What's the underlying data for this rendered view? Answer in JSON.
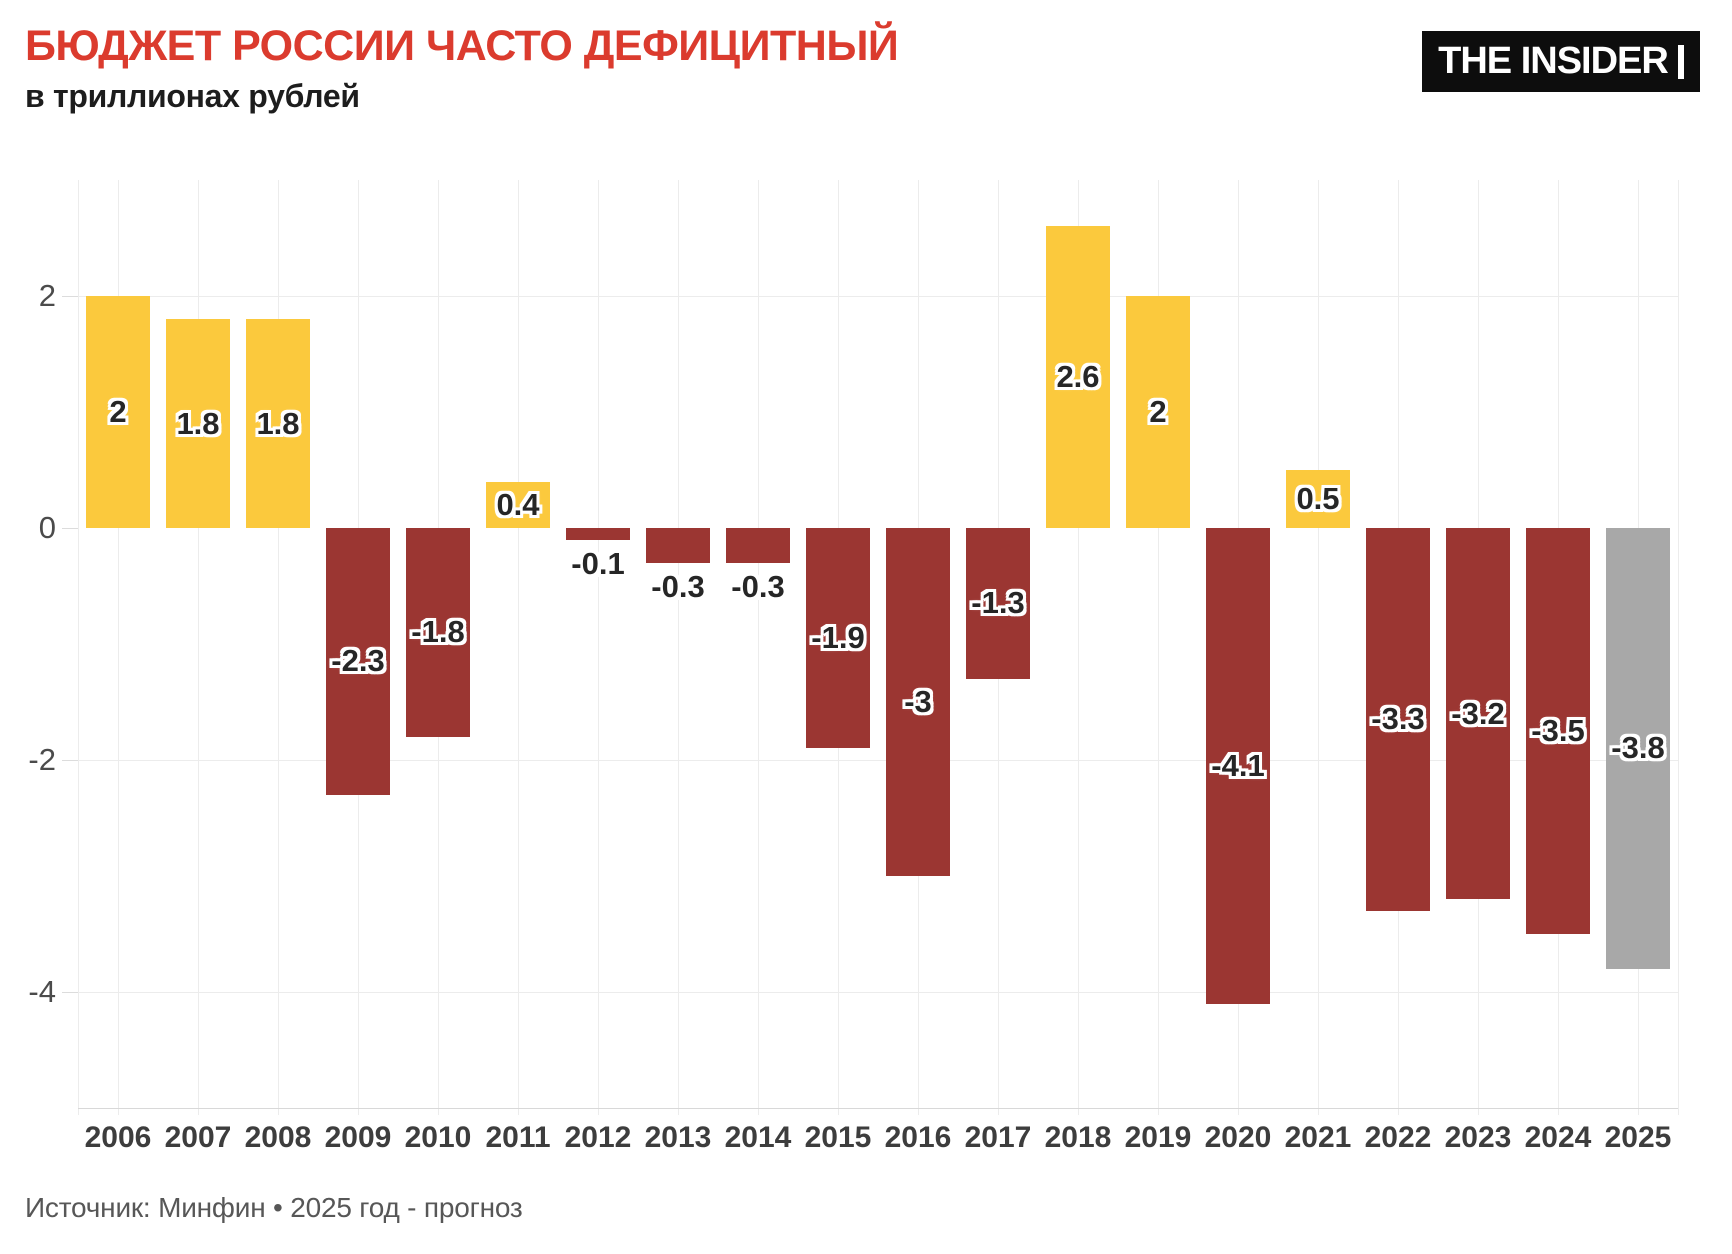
{
  "header": {
    "title": "БЮДЖЕТ РОССИИ ЧАСТО ДЕФИЦИТНЫЙ",
    "subtitle": "в триллионах рублей",
    "logo_text": "THE INSIDER"
  },
  "footer": {
    "source": "Источник: Минфин • 2025 год - прогноз"
  },
  "colors": {
    "title": "#DB3B2E",
    "surplus": "#FBC93D",
    "deficit": "#9B3632",
    "forecast": "#A8A8A8",
    "gridline": "#ececec",
    "axis_line": "#d8d8d8"
  },
  "chart_data": {
    "type": "bar",
    "title": "БЮДЖЕТ РОССИИ ЧАСТО ДЕФИЦИТНЫЙ",
    "subtitle": "в триллионах рублей",
    "categories": [
      "2006",
      "2007",
      "2008",
      "2009",
      "2010",
      "2011",
      "2012",
      "2013",
      "2014",
      "2015",
      "2016",
      "2017",
      "2018",
      "2019",
      "2020",
      "2021",
      "2022",
      "2023",
      "2024",
      "2025"
    ],
    "values": [
      2,
      1.8,
      1.8,
      -2.3,
      -1.8,
      0.4,
      -0.1,
      -0.3,
      -0.3,
      -1.9,
      -3,
      -1.3,
      2.6,
      2,
      -4.1,
      0.5,
      -3.3,
      -3.2,
      -3.5,
      -3.8
    ],
    "bar_labels": [
      "2",
      "1.8",
      "1.8",
      "-2.3",
      "-1.8",
      "0.4",
      "-0.1",
      "-0.3",
      "-0.3",
      "-1.9",
      "-3",
      "-1.3",
      "2.6",
      "2",
      "-4.1",
      "0.5",
      "-3.3",
      "-3.2",
      "-3.5",
      "-3.8"
    ],
    "bar_roles": [
      "surplus",
      "surplus",
      "surplus",
      "deficit",
      "deficit",
      "surplus",
      "deficit",
      "deficit",
      "deficit",
      "deficit",
      "deficit",
      "deficit",
      "surplus",
      "surplus",
      "deficit",
      "surplus",
      "deficit",
      "deficit",
      "deficit",
      "forecast"
    ],
    "xlabel": "",
    "ylabel": "",
    "ylim": [
      -5,
      3
    ],
    "y_ticks": [
      2,
      0,
      -2,
      -4
    ],
    "y_tick_labels": [
      "2",
      "0",
      "-2",
      "-4"
    ],
    "y_gridlines": [
      2,
      -2,
      -4
    ],
    "grid": true,
    "legend_position": "none",
    "forecast_note": "2025 год - прогноз"
  }
}
